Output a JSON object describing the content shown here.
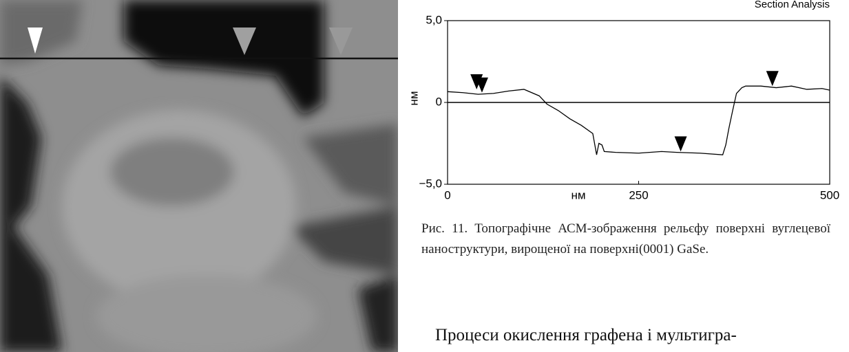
{
  "chart_data": {
    "type": "line",
    "title": "Section Analysis",
    "xlabel": "нм",
    "ylabel": "нм",
    "x": [
      0,
      20,
      40,
      60,
      80,
      100,
      120,
      130,
      145,
      160,
      175,
      190,
      195,
      198,
      202,
      205,
      220,
      250,
      280,
      300,
      330,
      360,
      364,
      368,
      373,
      378,
      385,
      390,
      410,
      430,
      450,
      470,
      490,
      500
    ],
    "values": [
      0.66,
      0.6,
      0.5,
      0.55,
      0.7,
      0.8,
      0.4,
      -0.1,
      -0.5,
      -1.0,
      -1.4,
      -1.9,
      -3.2,
      -2.5,
      -2.6,
      -3.0,
      -3.05,
      -3.1,
      -3.0,
      -3.05,
      -3.1,
      -3.2,
      -2.6,
      -1.6,
      -0.5,
      0.55,
      0.9,
      1.0,
      1.0,
      0.9,
      1.0,
      0.8,
      0.85,
      0.75
    ],
    "color": "#000000",
    "markers": {
      "x": [
        38,
        45,
        305,
        425
      ],
      "y": [
        0.8,
        0.6,
        -3.0,
        1.0
      ]
    },
    "xlim": [
      0,
      500
    ],
    "ylim": [
      -5,
      5
    ],
    "xticks": [
      0,
      250,
      500
    ],
    "yticks": [
      {
        "value": 5,
        "label": "5,0"
      },
      0,
      {
        "value": -5,
        "label": "−5,0"
      }
    ]
  },
  "caption": "Рис. 11. Топографічне АСМ-зображення рельєфу поверхні вуглецевої наноструктури, вирощеної на поверхні(0001) GaSe.",
  "body": "Процеси окислення графена і мультигра-"
}
